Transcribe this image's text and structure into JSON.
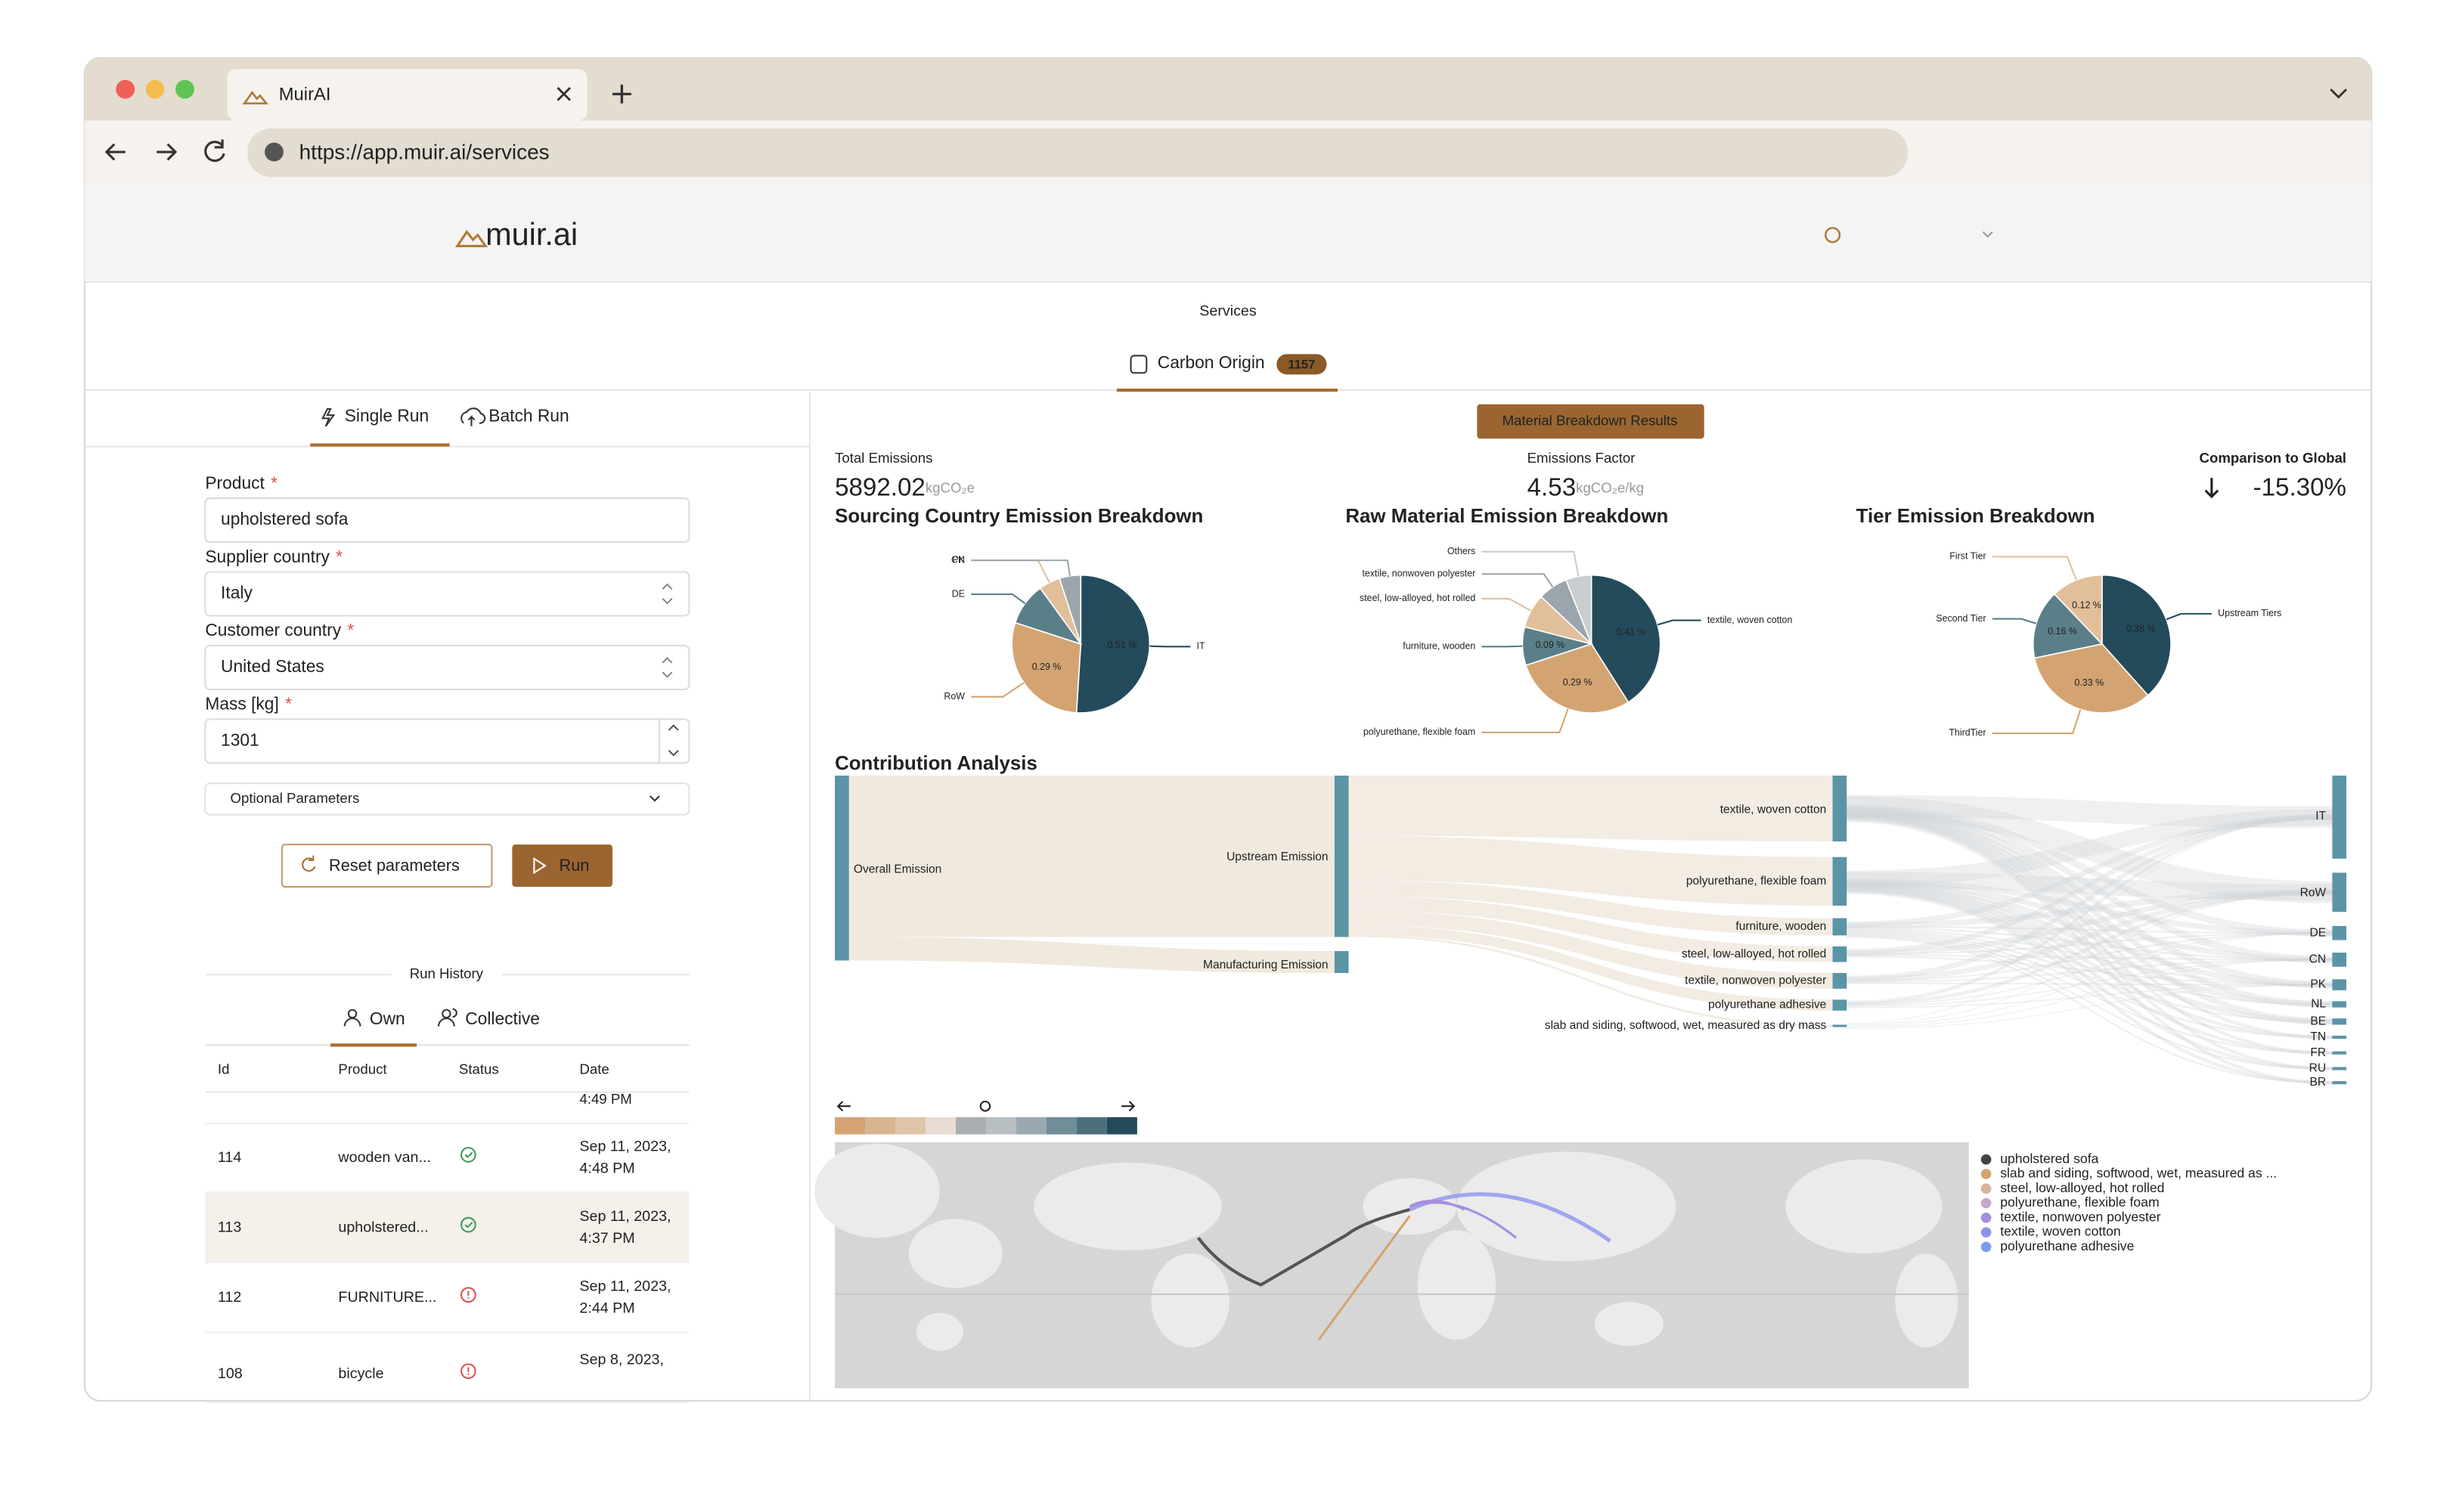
{
  "browser": {
    "tab_title": "MuirAI",
    "url": "https://app.muir.ai/services"
  },
  "header": {
    "logo": "muir.ai"
  },
  "nav": {
    "section": "Services",
    "tab": "Carbon Origin",
    "badge": "1157"
  },
  "form": {
    "modes": [
      "Single Run",
      "Batch Run"
    ],
    "required_mark": "*",
    "fields": [
      {
        "label": "Product",
        "value": "upholstered sofa"
      },
      {
        "label": "Supplier country",
        "value": "Italy"
      },
      {
        "label": "Customer country",
        "value": "United States"
      },
      {
        "label": "Mass [kg]",
        "value": "1301"
      }
    ],
    "optional": "Optional Parameters",
    "reset": "Reset parameters",
    "run": "Run"
  },
  "history": {
    "title": "Run History",
    "tabs": [
      "Own",
      "Collective"
    ],
    "columns": [
      "Id",
      "Product",
      "Status",
      "Date"
    ],
    "partial_time": "4:49 PM",
    "rows": [
      {
        "id": "114",
        "product": "wooden van...",
        "status": "ok",
        "date": "Sep 11, 2023,",
        "time": "4:48 PM"
      },
      {
        "id": "113",
        "product": "upholstered...",
        "status": "ok",
        "date": "Sep 11, 2023,",
        "time": "4:37 PM"
      },
      {
        "id": "112",
        "product": "FURNITURE...",
        "status": "error",
        "date": "Sep 11, 2023,",
        "time": "2:44 PM"
      },
      {
        "id": "108",
        "product": "bicycle",
        "status": "error",
        "date": "Sep 8, 2023,"
      }
    ]
  },
  "results": {
    "button": "Material Breakdown Results",
    "metrics": [
      {
        "label": "Total Emissions",
        "value": "5892.02",
        "unit": "kgCO₂e"
      },
      {
        "label": "Emissions Factor",
        "value": "4.53",
        "unit": "kgCO₂e/kg"
      },
      {
        "label": "Comparison to Global",
        "value": "-15.30%"
      }
    ]
  },
  "chart_data": [
    {
      "type": "pie",
      "title": "Sourcing Country Emission Breakdown",
      "categories": [
        "IT",
        "RoW",
        "DE",
        "CN",
        "PK"
      ],
      "values": [
        0.51,
        0.29,
        0.1,
        0.05,
        0.05
      ],
      "value_labels": [
        "0.51 %",
        "0.29 %",
        null,
        null,
        null
      ],
      "colors": [
        "#234b5b",
        "#d3a472",
        "#5b7f89",
        "#e2bf9b",
        "#9aa6ab"
      ]
    },
    {
      "type": "pie",
      "title": "Raw Material Emission Breakdown",
      "categories": [
        "textile, woven cotton",
        "polyurethane, flexible foam",
        "furniture, wooden",
        "steel, low-alloyed, hot rolled",
        "textile, nonwoven polyester",
        "Others"
      ],
      "values": [
        0.41,
        0.29,
        0.09,
        0.08,
        0.07,
        0.06
      ],
      "value_labels": [
        "0.41 %",
        "0.29 %",
        "0.09 %",
        null,
        null,
        null
      ],
      "colors": [
        "#234b5b",
        "#d3a472",
        "#5b7f89",
        "#e2bf9b",
        "#9aa6ab",
        "#c9cdcf"
      ]
    },
    {
      "type": "pie",
      "title": "Tier Emission Breakdown",
      "categories": [
        "Upstream Tiers",
        "ThirdTier",
        "Second Tier",
        "First Tier"
      ],
      "values": [
        0.38,
        0.33,
        0.16,
        0.12
      ],
      "value_labels": [
        "0.38 %",
        "0.33 %",
        "0.16 %",
        "0.12 %"
      ],
      "colors": [
        "#234b5b",
        "#d3a472",
        "#5b7f89",
        "#e2bf9b"
      ]
    }
  ],
  "sankey": {
    "title": "Contribution Analysis",
    "sources": [
      "Overall Emission"
    ],
    "stages": [
      "Upstream Emission",
      "Manufacturing Emission"
    ],
    "materials": [
      "textile, woven cotton",
      "polyurethane, flexible foam",
      "furniture, wooden",
      "steel, low-alloyed, hot rolled",
      "textile, nonwoven polyester",
      "polyurethane adhesive",
      "slab and siding, softwood, wet, measured as dry mass"
    ],
    "countries": [
      "IT",
      "RoW",
      "DE",
      "CN",
      "PK",
      "NL",
      "BE",
      "TN",
      "FR",
      "RU",
      "BR"
    ]
  },
  "map": {
    "legend": [
      {
        "name": "upholstered sofa",
        "color": "#444444"
      },
      {
        "name": "slab and siding, softwood, wet, measured as ...",
        "color": "#d3a472"
      },
      {
        "name": "steel, low-alloyed, hot rolled",
        "color": "#d8b49a"
      },
      {
        "name": "polyurethane, flexible foam",
        "color": "#c9a7c9"
      },
      {
        "name": "textile, nonwoven polyester",
        "color": "#a58ee0"
      },
      {
        "name": "textile, woven cotton",
        "color": "#8c95ee"
      },
      {
        "name": "polyurethane adhesive",
        "color": "#7d9cf0"
      }
    ]
  }
}
